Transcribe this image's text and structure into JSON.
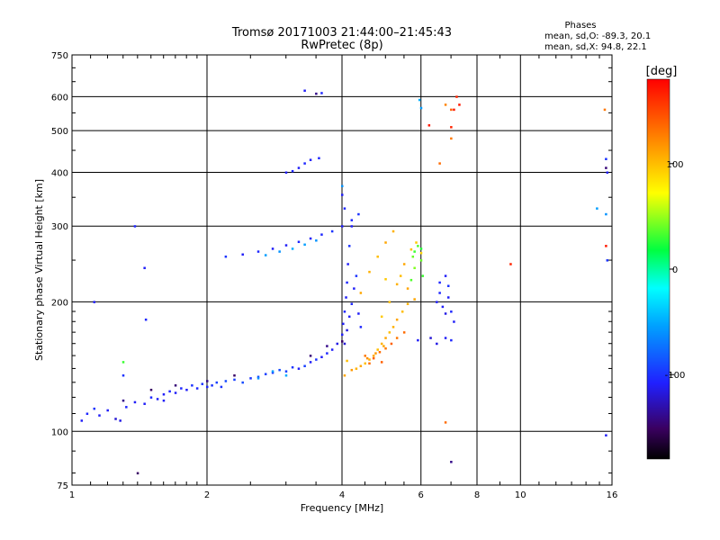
{
  "chart_data": {
    "type": "scatter",
    "title": "Tromsø 20171003 21:44:00–21:45:43",
    "subtitle": "RwPretec (8p)",
    "stats": {
      "heading": "Phases",
      "line_o": "mean, sd,O: -89.3, 20.1",
      "line_x": "mean, sd,X:  94.8, 22.1"
    },
    "xlabel": "Frequency [MHz]",
    "ylabel": "Stationary phase Virtual Height [km]",
    "xscale": "log",
    "yscale": "log",
    "xlim": [
      1,
      16
    ],
    "ylim": [
      75,
      750
    ],
    "xticks": [
      {
        "value": 1,
        "label": "1"
      },
      {
        "value": 2,
        "label": "2"
      },
      {
        "value": 4,
        "label": "4"
      },
      {
        "value": 6,
        "label": "6"
      },
      {
        "value": 8,
        "label": "8"
      },
      {
        "value": 10,
        "label": "10"
      },
      {
        "value": 16,
        "label": "16"
      }
    ],
    "yticks": [
      {
        "value": 75,
        "label": "75"
      },
      {
        "value": 100,
        "label": "100"
      },
      {
        "value": 200,
        "label": "200"
      },
      {
        "value": 300,
        "label": "300"
      },
      {
        "value": 400,
        "label": "400"
      },
      {
        "value": 500,
        "label": "500"
      },
      {
        "value": 600,
        "label": "600"
      },
      {
        "value": 750,
        "label": "750"
      }
    ],
    "grid": true,
    "colorbar": {
      "label": "[deg]",
      "range": [
        -180,
        180
      ],
      "ticks": [
        {
          "value": 100,
          "label": "100"
        },
        {
          "value": 0,
          "label": "0"
        },
        {
          "value": -100,
          "label": "-100"
        }
      ]
    },
    "series": [
      {
        "points": [
          [
            1.05,
            106,
            -110
          ],
          [
            1.08,
            110,
            -105
          ],
          [
            1.12,
            113,
            -100
          ],
          [
            1.15,
            109,
            -110
          ],
          [
            1.2,
            112,
            -110
          ],
          [
            1.25,
            107,
            -120
          ],
          [
            1.28,
            106,
            -115
          ],
          [
            1.32,
            114,
            -105
          ],
          [
            1.38,
            117,
            -110
          ],
          [
            1.45,
            116,
            -110
          ],
          [
            1.5,
            120,
            -105
          ],
          [
            1.55,
            119,
            -110
          ],
          [
            1.6,
            122,
            -110
          ],
          [
            1.65,
            124,
            -105
          ],
          [
            1.7,
            123,
            -110
          ],
          [
            1.75,
            126,
            -105
          ],
          [
            1.8,
            125,
            -110
          ],
          [
            1.85,
            128,
            -100
          ],
          [
            1.9,
            126,
            -105
          ],
          [
            1.95,
            129,
            -100
          ],
          [
            2.0,
            127,
            -105
          ],
          [
            2.05,
            128,
            -100
          ],
          [
            2.1,
            130,
            -95
          ],
          [
            2.15,
            127,
            -100
          ],
          [
            2.2,
            131,
            -90
          ],
          [
            2.3,
            132,
            -95
          ],
          [
            2.4,
            130,
            -90
          ],
          [
            2.5,
            133,
            -100
          ],
          [
            2.6,
            134,
            -90
          ],
          [
            2.7,
            136,
            -95
          ],
          [
            2.8,
            137,
            -100
          ],
          [
            2.9,
            139,
            -90
          ],
          [
            3.0,
            138,
            -95
          ],
          [
            3.1,
            141,
            -100
          ],
          [
            3.2,
            140,
            -110
          ],
          [
            3.3,
            142,
            -95
          ],
          [
            3.4,
            145,
            -110
          ],
          [
            3.5,
            147,
            -100
          ],
          [
            3.6,
            149,
            -110
          ],
          [
            3.7,
            152,
            -105
          ],
          [
            3.8,
            155,
            -110
          ],
          [
            3.9,
            160,
            -115
          ],
          [
            4.0,
            168,
            -110
          ],
          [
            4.02,
            178,
            -110
          ],
          [
            4.05,
            190,
            -105
          ],
          [
            4.08,
            205,
            -110
          ],
          [
            4.1,
            222,
            -105
          ],
          [
            4.12,
            245,
            -110
          ],
          [
            4.15,
            270,
            -100
          ],
          [
            4.2,
            300,
            -110
          ],
          [
            4.05,
            160,
            -120
          ],
          [
            4.1,
            172,
            -115
          ],
          [
            4.15,
            185,
            -110
          ],
          [
            4.2,
            198,
            -105
          ],
          [
            4.25,
            215,
            -110
          ],
          [
            4.3,
            230,
            -100
          ],
          [
            4.35,
            188,
            -110
          ],
          [
            4.4,
            175,
            -105
          ],
          [
            1.3,
            135,
            -100
          ],
          [
            1.6,
            118,
            -110
          ],
          [
            2.2,
            255,
            -100
          ],
          [
            2.4,
            258,
            -110
          ],
          [
            2.6,
            262,
            -105
          ],
          [
            2.8,
            266,
            -110
          ],
          [
            3.0,
            271,
            -110
          ],
          [
            3.2,
            276,
            -105
          ],
          [
            3.4,
            281,
            -110
          ],
          [
            3.6,
            287,
            -105
          ],
          [
            3.8,
            292,
            -100
          ],
          [
            4.0,
            300,
            -110
          ],
          [
            4.2,
            310,
            -105
          ],
          [
            4.35,
            320,
            -100
          ],
          [
            3.0,
            400,
            -110
          ],
          [
            3.1,
            403,
            -105
          ],
          [
            3.2,
            410,
            -110
          ],
          [
            3.3,
            420,
            -105
          ],
          [
            3.4,
            428,
            -110
          ],
          [
            3.55,
            432,
            -105
          ],
          [
            3.3,
            620,
            -110
          ],
          [
            3.6,
            612,
            -105
          ],
          [
            6.5,
            200,
            -110
          ],
          [
            6.6,
            210,
            -105
          ],
          [
            6.7,
            195,
            -110
          ],
          [
            6.8,
            188,
            -115
          ],
          [
            6.9,
            205,
            -110
          ],
          [
            7.0,
            190,
            -105
          ],
          [
            7.1,
            180,
            -110
          ],
          [
            6.6,
            222,
            -105
          ],
          [
            6.8,
            230,
            -110
          ],
          [
            6.9,
            218,
            -100
          ],
          [
            6.3,
            165,
            -120
          ],
          [
            6.5,
            160,
            -115
          ],
          [
            6.8,
            165,
            -110
          ],
          [
            7.0,
            163,
            -105
          ],
          [
            5.9,
            163,
            -110
          ],
          [
            1.12,
            200,
            -110
          ],
          [
            1.38,
            300,
            -105
          ],
          [
            1.45,
            240,
            -110
          ],
          [
            1.46,
            182,
            -105
          ],
          [
            15.5,
            430,
            -100
          ],
          [
            15.6,
            400,
            -110
          ],
          [
            15.6,
            250,
            -100
          ],
          [
            15.5,
            98,
            -110
          ],
          [
            4.0,
            355,
            -110
          ],
          [
            4.05,
            330,
            -105
          ]
        ]
      },
      {
        "points": [
          [
            4.3,
            140,
            105
          ],
          [
            4.4,
            142,
            110
          ],
          [
            4.5,
            144,
            100
          ],
          [
            4.6,
            147,
            105
          ],
          [
            4.7,
            150,
            110
          ],
          [
            4.8,
            155,
            100
          ],
          [
            4.9,
            160,
            105
          ],
          [
            5.0,
            165,
            110
          ],
          [
            4.55,
            148,
            120
          ],
          [
            4.75,
            152,
            115
          ],
          [
            4.95,
            158,
            110
          ],
          [
            5.1,
            170,
            100
          ],
          [
            5.2,
            175,
            105
          ],
          [
            5.3,
            182,
            110
          ],
          [
            5.45,
            190,
            100
          ],
          [
            5.6,
            198,
            105
          ],
          [
            5.8,
            203,
            110
          ],
          [
            4.4,
            210,
            110
          ],
          [
            4.6,
            235,
            105
          ],
          [
            4.8,
            255,
            100
          ],
          [
            5.0,
            275,
            110
          ],
          [
            5.2,
            292,
            105
          ],
          [
            4.9,
            185,
            95
          ],
          [
            5.1,
            200,
            100
          ],
          [
            5.3,
            220,
            105
          ],
          [
            5.5,
            245,
            110
          ],
          [
            5.7,
            265,
            100
          ],
          [
            6.0,
            260,
            90
          ],
          [
            5.85,
            275,
            95
          ],
          [
            4.1,
            146,
            100
          ],
          [
            4.2,
            139,
            115
          ],
          [
            4.05,
            135,
            110
          ],
          [
            5.0,
            226,
            95
          ],
          [
            5.4,
            230,
            100
          ],
          [
            5.6,
            215,
            110
          ]
        ]
      },
      {
        "points": [
          [
            4.5,
            150,
            130
          ],
          [
            4.7,
            148,
            140
          ],
          [
            4.85,
            153,
            135
          ],
          [
            5.0,
            156,
            130
          ],
          [
            5.15,
            160,
            140
          ],
          [
            4.6,
            144,
            135
          ],
          [
            4.9,
            145,
            140
          ],
          [
            5.3,
            165,
            130
          ],
          [
            5.5,
            170,
            135
          ],
          [
            6.8,
            575,
            125
          ],
          [
            7.0,
            560,
            140
          ],
          [
            7.0,
            480,
            130
          ],
          [
            6.6,
            420,
            135
          ],
          [
            15.4,
            560,
            130
          ],
          [
            6.8,
            105,
            135
          ]
        ]
      },
      {
        "points": [
          [
            5.8,
            262,
            30
          ],
          [
            6.0,
            266,
            25
          ],
          [
            5.9,
            270,
            35
          ],
          [
            5.75,
            255,
            40
          ],
          [
            6.05,
            230,
            30
          ],
          [
            5.7,
            225,
            35
          ],
          [
            5.8,
            240,
            45
          ],
          [
            6.0,
            250,
            40
          ],
          [
            1.3,
            145,
            30
          ]
        ]
      },
      {
        "points": [
          [
            2.7,
            257,
            -55
          ],
          [
            2.9,
            262,
            -60
          ],
          [
            3.1,
            266,
            -50
          ],
          [
            3.3,
            272,
            -55
          ],
          [
            3.5,
            278,
            -60
          ],
          [
            2.6,
            133,
            -60
          ],
          [
            2.8,
            138,
            -55
          ],
          [
            3.0,
            135,
            -50
          ],
          [
            5.95,
            590,
            -50
          ],
          [
            6.0,
            565,
            -55
          ],
          [
            15.5,
            320,
            -60
          ],
          [
            14.8,
            330,
            -55
          ],
          [
            4.0,
            372,
            -60
          ]
        ]
      },
      {
        "points": [
          [
            7.1,
            560,
            170
          ],
          [
            7.0,
            510,
            165
          ],
          [
            6.25,
            515,
            170
          ],
          [
            9.5,
            245,
            165
          ],
          [
            15.5,
            270,
            170
          ],
          [
            7.2,
            600,
            165
          ],
          [
            7.3,
            575,
            170
          ]
        ]
      },
      {
        "points": [
          [
            1.3,
            118,
            -140
          ],
          [
            1.5,
            125,
            -150
          ],
          [
            1.7,
            128,
            -145
          ],
          [
            2.0,
            131,
            -140
          ],
          [
            2.3,
            135,
            -150
          ],
          [
            3.4,
            150,
            -145
          ],
          [
            3.7,
            158,
            -140
          ],
          [
            4.0,
            162,
            -150
          ],
          [
            7.0,
            85,
            -140
          ],
          [
            1.4,
            80,
            -150
          ],
          [
            15.5,
            410,
            -145
          ],
          [
            3.5,
            610,
            -140
          ]
        ]
      }
    ]
  }
}
